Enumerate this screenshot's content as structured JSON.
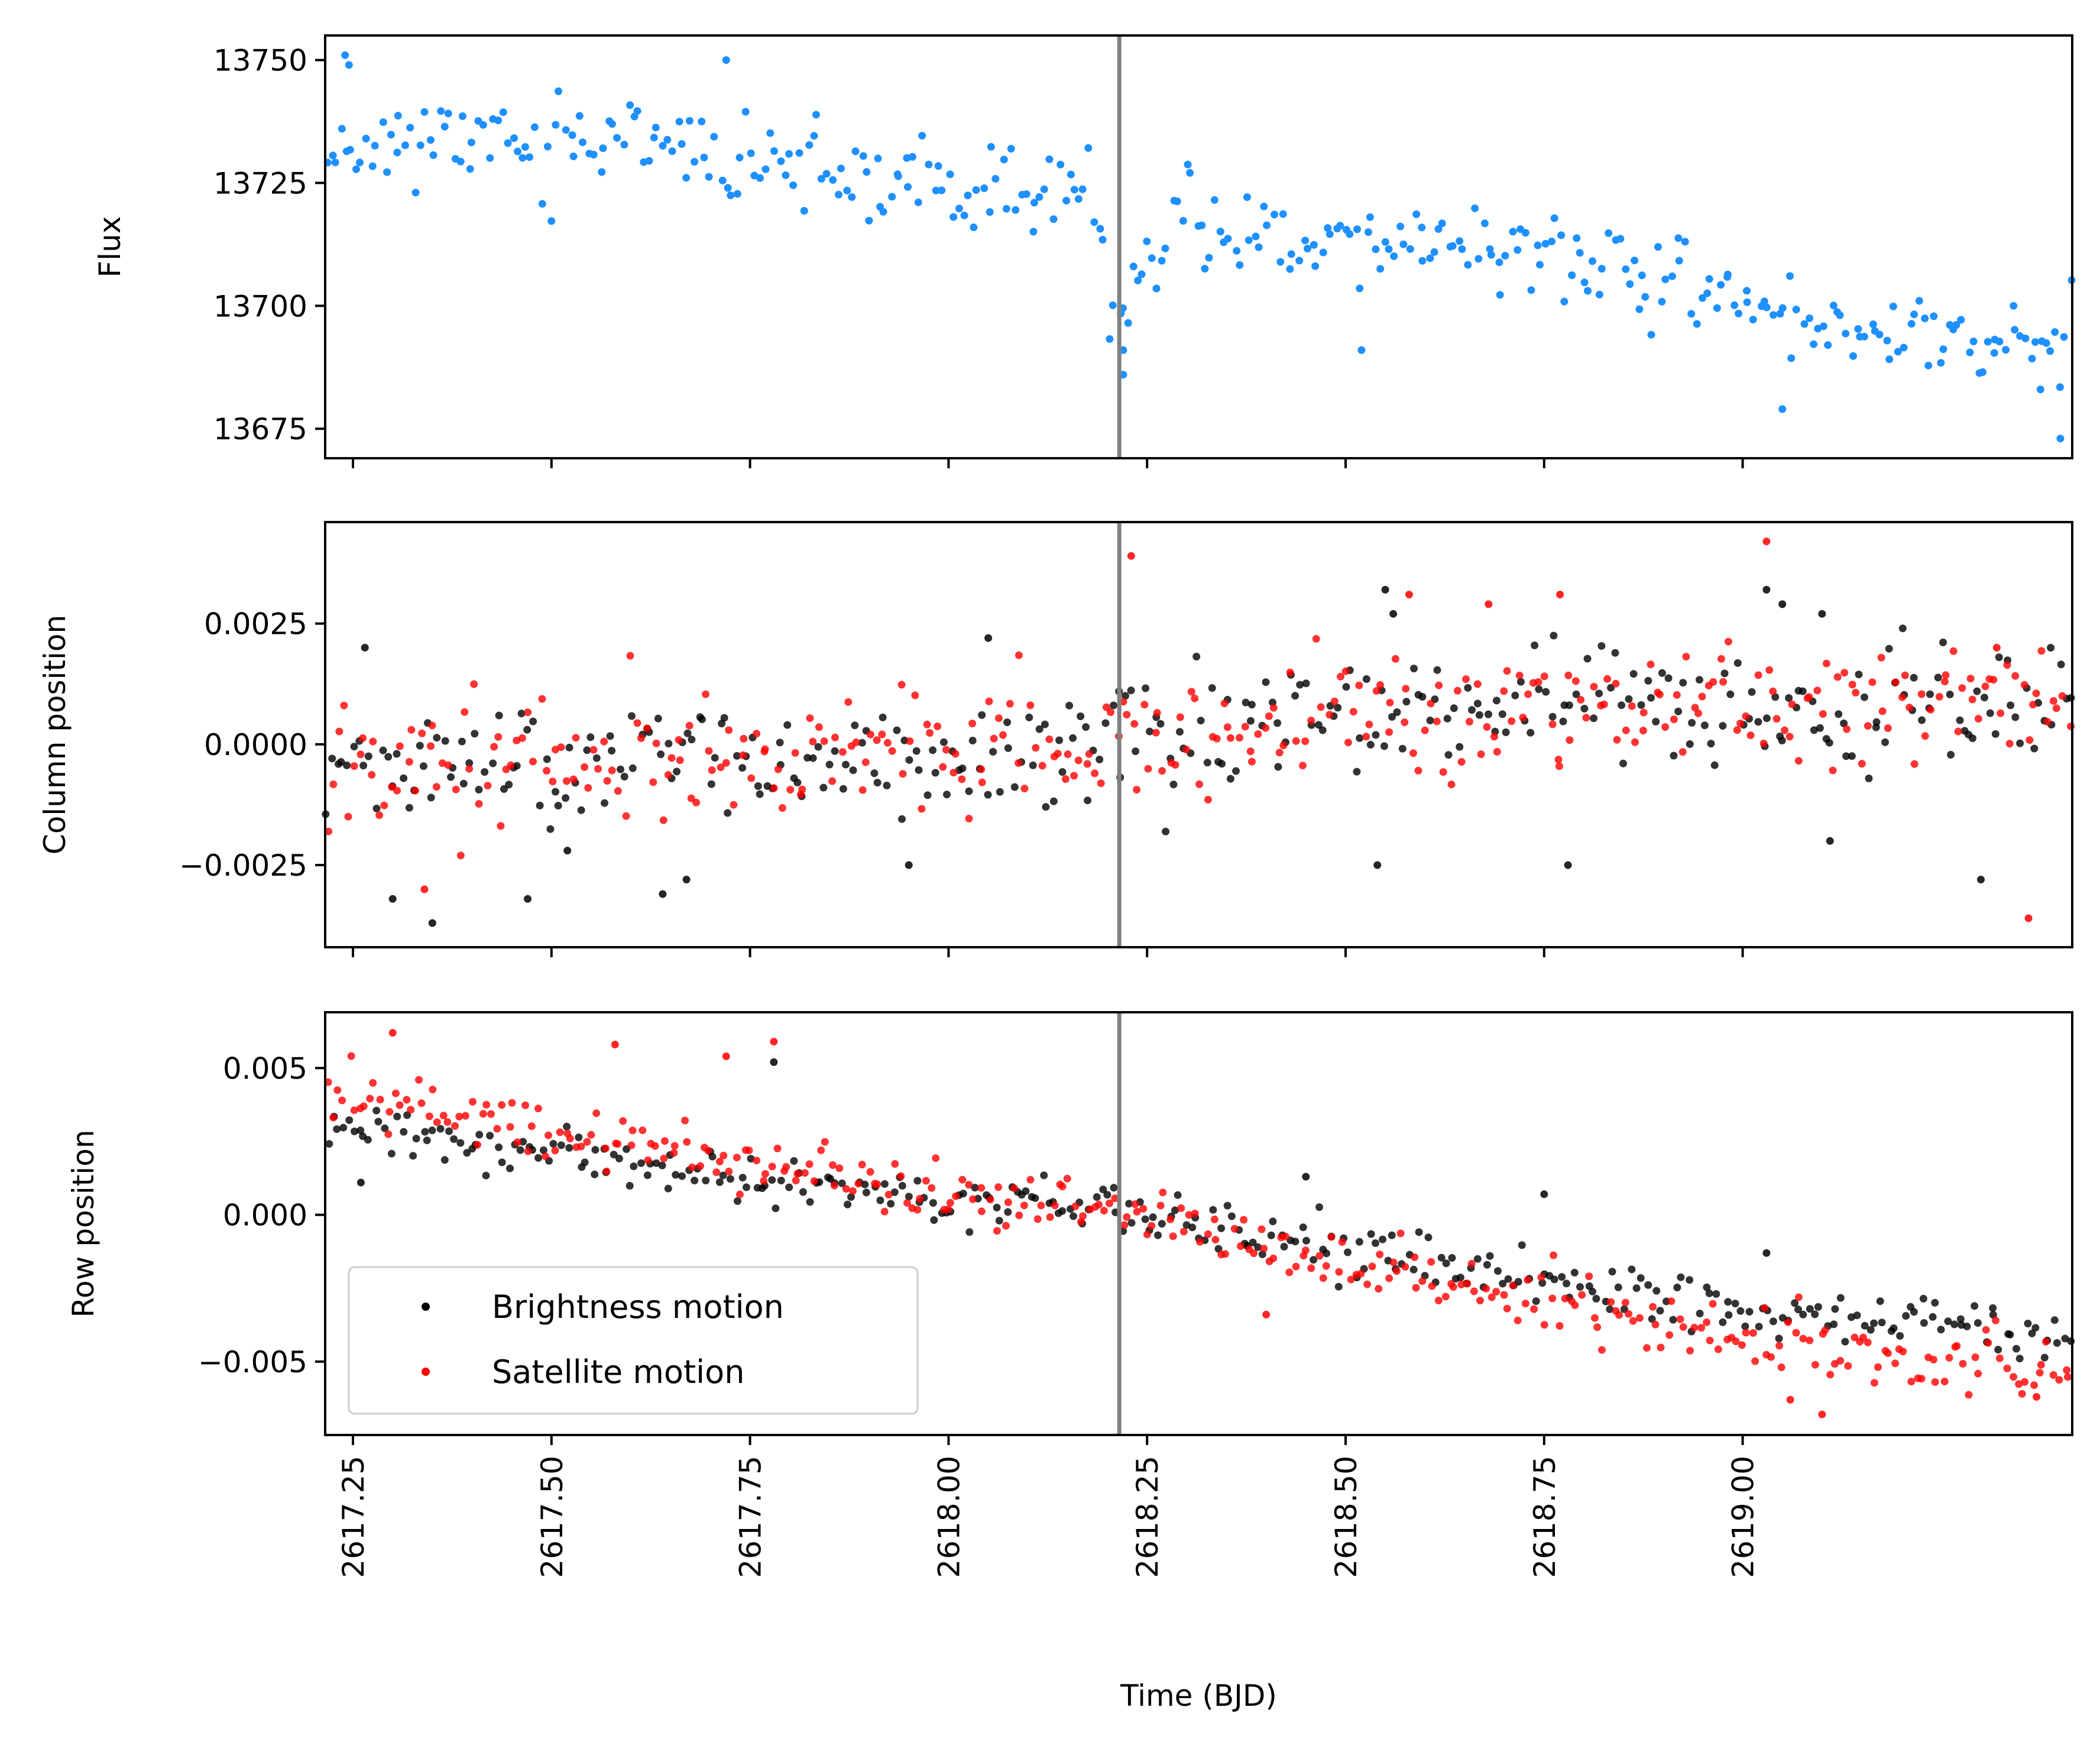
{
  "chart_data": [
    {
      "type": "scatter",
      "ylabel": "Flux",
      "xlim": [
        2617.215,
        2619.415
      ],
      "ylim": [
        13669,
        13755
      ],
      "x_ticks": [
        2617.25,
        2617.5,
        2617.75,
        2618.0,
        2618.25,
        2618.5,
        2618.75,
        2619.0
      ],
      "y_ticks": [
        13675,
        13700,
        13725,
        13750
      ],
      "y_tick_labels": [
        "13675",
        "13700",
        "13725",
        "13750"
      ],
      "vline_x": 2618.215,
      "vline_color": "#808080",
      "series": [
        {
          "color": "#1e90ff",
          "trend": [
            [
              2617.215,
              13733
            ],
            [
              2617.55,
              13734
            ],
            [
              2618.0,
              13723
            ],
            [
              2618.19,
              13722
            ],
            [
              2618.2,
              13697
            ],
            [
              2618.3,
              13716
            ],
            [
              2618.75,
              13711
            ],
            [
              2619.0,
              13700
            ],
            [
              2619.415,
              13690
            ]
          ],
          "spread": 8,
          "count": 360,
          "seed": 11,
          "notable": [
            [
              2617.24,
              13751
            ],
            [
              2617.245,
              13749
            ],
            [
              2617.72,
              13750
            ],
            [
              2618.22,
              13686
            ],
            [
              2618.22,
              13691
            ],
            [
              2618.52,
              13691
            ],
            [
              2619.05,
              13679
            ],
            [
              2619.4,
              13673
            ],
            [
              2619.375,
              13683
            ]
          ]
        }
      ]
    },
    {
      "type": "scatter",
      "ylabel": "Column position",
      "xlim": [
        2617.215,
        2619.415
      ],
      "ylim": [
        -0.0042,
        0.0046
      ],
      "x_ticks": [
        2617.25,
        2617.5,
        2617.75,
        2618.0,
        2618.25,
        2618.5,
        2618.75,
        2619.0
      ],
      "y_ticks": [
        -0.0025,
        0.0,
        0.0025
      ],
      "y_tick_labels": [
        "−0.0025",
        "0.0000",
        "0.0025"
      ],
      "vline_x": 2618.215,
      "vline_color": "#808080",
      "series": [
        {
          "name": "Brightness motion",
          "color": "#000000",
          "trend": [
            [
              2617.215,
              -0.0005
            ],
            [
              2617.8,
              -0.0003
            ],
            [
              2618.2,
              -0.0002
            ],
            [
              2618.5,
              0.0005
            ],
            [
              2619.0,
              0.0007
            ],
            [
              2619.415,
              0.0008
            ]
          ],
          "spread": 0.0011,
          "count": 330,
          "seed": 23,
          "notable": [
            [
              2617.265,
              0.002
            ],
            [
              2617.3,
              -0.0032
            ],
            [
              2617.35,
              -0.0037
            ],
            [
              2617.47,
              -0.0032
            ],
            [
              2617.52,
              -0.0022
            ],
            [
              2617.64,
              -0.0031
            ],
            [
              2617.67,
              -0.0028
            ],
            [
              2617.95,
              -0.0025
            ],
            [
              2618.05,
              0.0022
            ],
            [
              2618.55,
              0.0032
            ],
            [
              2618.56,
              0.0027
            ],
            [
              2618.54,
              -0.0025
            ],
            [
              2618.78,
              -0.0025
            ],
            [
              2619.03,
              0.0032
            ],
            [
              2619.05,
              0.0029
            ],
            [
              2619.1,
              0.0027
            ],
            [
              2619.11,
              -0.002
            ],
            [
              2619.3,
              -0.0028
            ]
          ]
        },
        {
          "name": "Satellite motion",
          "color": "#ff0000",
          "trend": [
            [
              2617.215,
              -0.0004
            ],
            [
              2617.8,
              -0.0002
            ],
            [
              2618.2,
              -0.0001
            ],
            [
              2618.5,
              0.0006
            ],
            [
              2619.0,
              0.0008
            ],
            [
              2619.415,
              0.001
            ]
          ],
          "spread": 0.0012,
          "count": 330,
          "seed": 47,
          "notable": [
            [
              2618.23,
              0.0039
            ],
            [
              2619.03,
              0.0042
            ],
            [
              2617.34,
              -0.003
            ],
            [
              2618.58,
              0.0031
            ],
            [
              2618.77,
              0.0031
            ],
            [
              2618.68,
              0.0029
            ],
            [
              2619.36,
              -0.0036
            ],
            [
              2619.32,
              0.002
            ]
          ]
        }
      ]
    },
    {
      "type": "scatter",
      "ylabel": "Row position",
      "xlabel": "Time (BJD)",
      "xlim": [
        2617.215,
        2619.415
      ],
      "ylim": [
        -0.0075,
        0.0069
      ],
      "x_ticks": [
        2617.25,
        2617.5,
        2617.75,
        2618.0,
        2618.25,
        2618.5,
        2618.75,
        2619.0
      ],
      "x_tick_labels": [
        "2617.25",
        "2617.50",
        "2617.75",
        "2618.00",
        "2618.25",
        "2618.50",
        "2618.75",
        "2619.00"
      ],
      "y_ticks": [
        -0.005,
        0.0,
        0.005
      ],
      "y_tick_labels": [
        "−0.005",
        "0.000",
        "0.005"
      ],
      "vline_x": 2618.215,
      "vline_color": "#808080",
      "legend_position": "lower-left",
      "series": [
        {
          "name": "Brightness motion",
          "color": "#000000",
          "trend": [
            [
              2617.215,
              0.0031
            ],
            [
              2617.5,
              0.0021
            ],
            [
              2618.0,
              0.0004
            ],
            [
              2618.215,
              0.0003
            ],
            [
              2618.5,
              -0.0012
            ],
            [
              2619.0,
              -0.0033
            ],
            [
              2619.415,
              -0.0041
            ]
          ],
          "spread": 0.0008,
          "count": 330,
          "seed": 71,
          "notable": [
            [
              2617.78,
              0.0052
            ],
            [
              2618.45,
              0.0013
            ],
            [
              2618.75,
              0.0007
            ],
            [
              2619.03,
              -0.0013
            ],
            [
              2617.26,
              0.0011
            ]
          ]
        },
        {
          "name": "Satellite motion",
          "color": "#ff0000",
          "trend": [
            [
              2617.215,
              0.0041
            ],
            [
              2617.5,
              0.0028
            ],
            [
              2618.0,
              0.0005
            ],
            [
              2618.215,
              0.0002
            ],
            [
              2618.5,
              -0.0016
            ],
            [
              2619.0,
              -0.0043
            ],
            [
              2619.415,
              -0.0054
            ]
          ],
          "spread": 0.0009,
          "count": 330,
          "seed": 97,
          "notable": [
            [
              2617.3,
              0.0062
            ],
            [
              2617.78,
              0.0059
            ],
            [
              2617.58,
              0.0058
            ],
            [
              2617.72,
              0.0054
            ],
            [
              2619.06,
              -0.0063
            ],
            [
              2619.1,
              -0.0068
            ],
            [
              2619.37,
              -0.0062
            ],
            [
              2618.4,
              -0.0034
            ]
          ]
        }
      ]
    }
  ]
}
